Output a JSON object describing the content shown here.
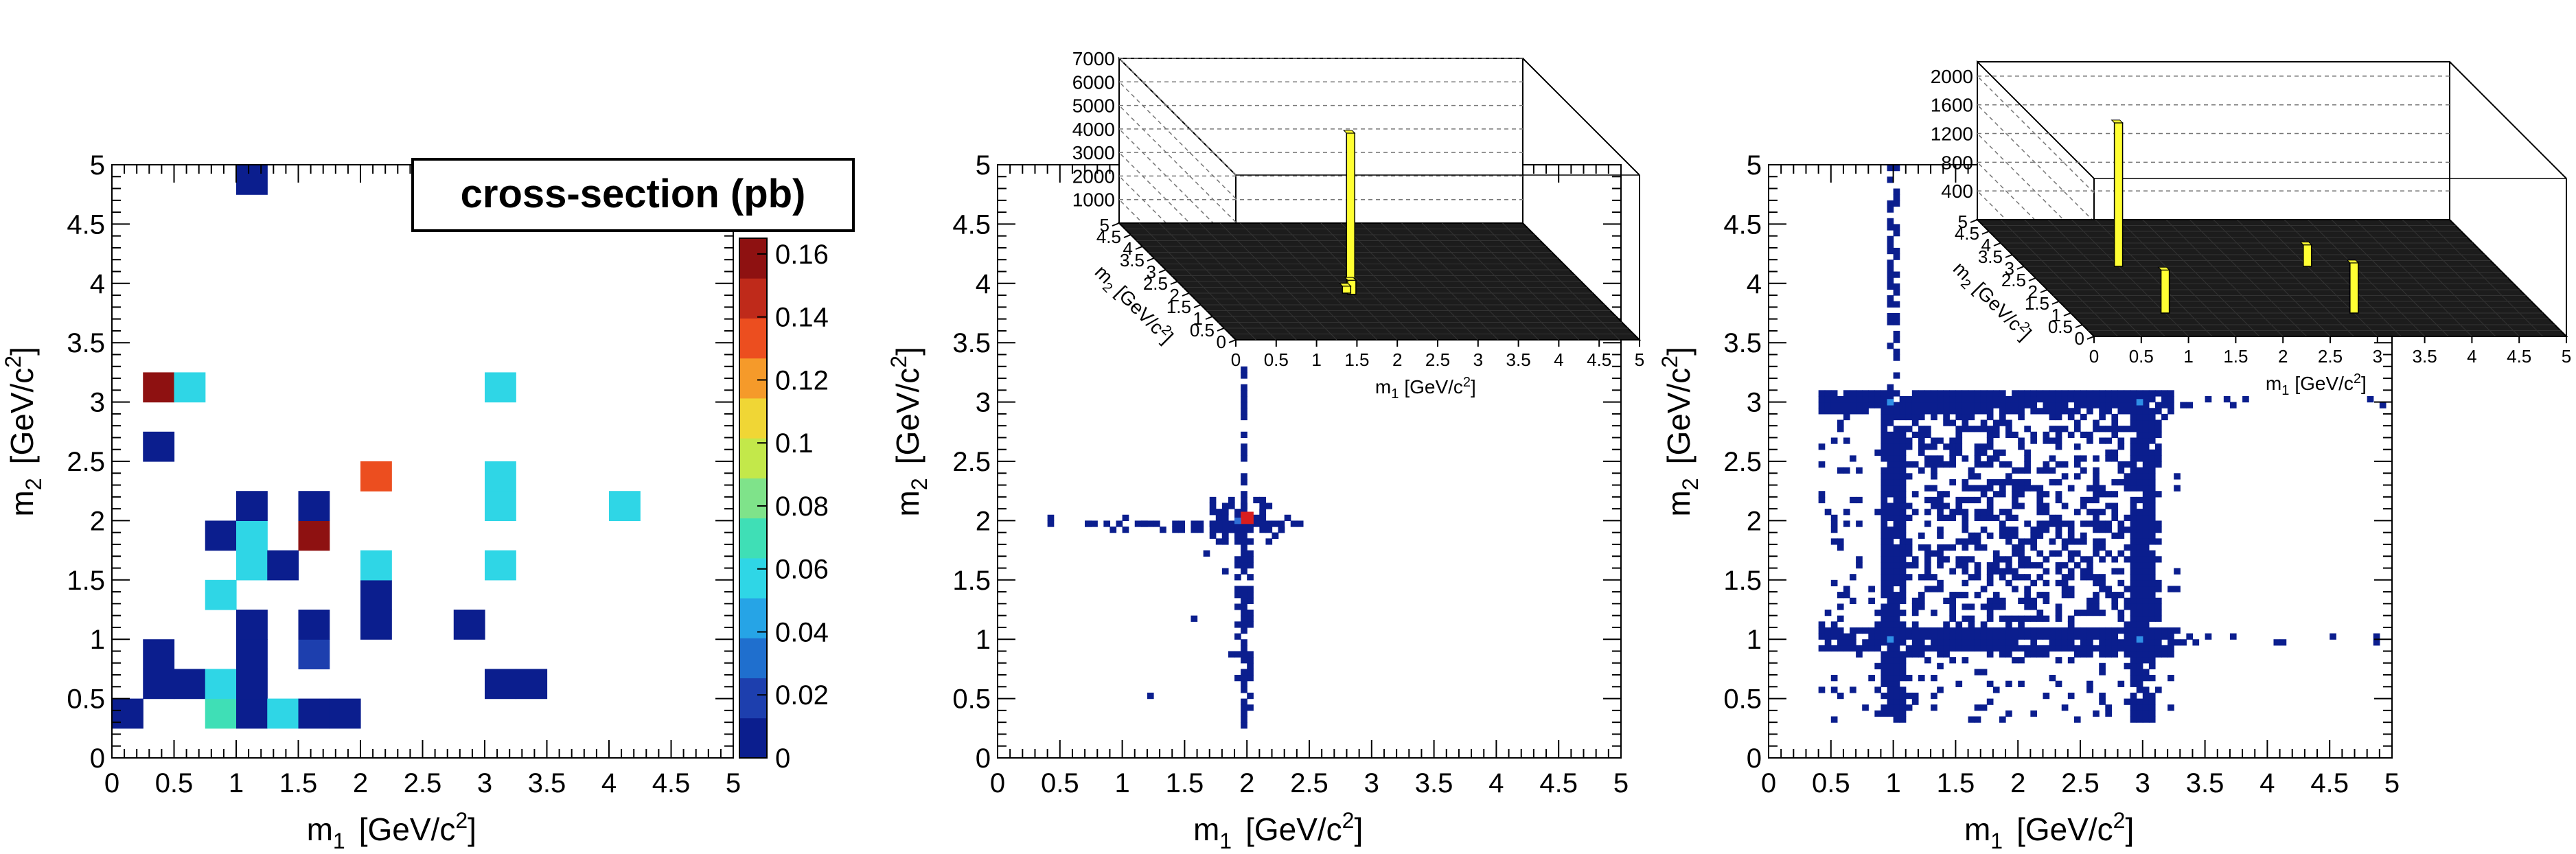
{
  "figure": {
    "background": "#ffffff"
  },
  "colors": {
    "axis": "#000000",
    "low": "#0b1e8e",
    "mid": "#3fdfb6",
    "high": "#8e1111",
    "surface": "#1c1c1c",
    "spike": "#ffff33"
  },
  "palette": [
    "#0b1e8e",
    "#1d3fae",
    "#1f6fce",
    "#26a4e6",
    "#2fd6e6",
    "#3fdfb6",
    "#7fe38a",
    "#c3e84a",
    "#f0d635",
    "#f59a2a",
    "#ec4e1f",
    "#bf2a1a",
    "#8e1111"
  ],
  "chart_data": [
    {
      "type": "heatmap",
      "xlabel_main": "m",
      "xlabel_sub": "1",
      "xlabel_unit": "[GeV/c",
      "xlabel_sup": "2",
      "xlabel_end": "]",
      "ylabel_main": "m",
      "ylabel_sub": "2",
      "ylabel_unit": "[GeV/c",
      "ylabel_sup": "2",
      "ylabel_end": "]",
      "xlim": [
        0,
        5
      ],
      "ylim": [
        0,
        5
      ],
      "xticks": [
        "0",
        "0.5",
        "1",
        "1.5",
        "2",
        "2.5",
        "3",
        "3.5",
        "4",
        "4.5",
        "5"
      ],
      "yticks": [
        "0",
        "0.5",
        "1",
        "1.5",
        "2",
        "2.5",
        "3",
        "3.5",
        "4",
        "4.5",
        "5"
      ],
      "bin_width": 0.25,
      "title_box": "cross-section (pb)",
      "colorbar": {
        "min": 0,
        "max": 0.165,
        "ticks": [
          "0",
          "0.02",
          "0.04",
          "0.06",
          "0.08",
          "0.1",
          "0.12",
          "0.14",
          "0.16"
        ]
      },
      "cells": [
        [
          0.0,
          0.25,
          0.004
        ],
        [
          0.25,
          0.5,
          0.004
        ],
        [
          0.25,
          0.75,
          0.004
        ],
        [
          0.5,
          0.5,
          0.004
        ],
        [
          0.75,
          0.25,
          0.075
        ],
        [
          0.75,
          0.5,
          0.06
        ],
        [
          0.75,
          1.25,
          0.06
        ],
        [
          0.75,
          1.75,
          0.004
        ],
        [
          1.0,
          0.25,
          0.004
        ],
        [
          1.0,
          0.5,
          0.004
        ],
        [
          1.0,
          0.75,
          0.004
        ],
        [
          1.0,
          1.0,
          0.004
        ],
        [
          1.0,
          1.5,
          0.06
        ],
        [
          1.0,
          1.75,
          0.06
        ],
        [
          1.0,
          2.0,
          0.004
        ],
        [
          1.0,
          4.75,
          0.004
        ],
        [
          1.25,
          0.25,
          0.06
        ],
        [
          1.25,
          1.5,
          0.004
        ],
        [
          1.5,
          0.25,
          0.004
        ],
        [
          1.5,
          0.75,
          0.025
        ],
        [
          1.5,
          1.0,
          0.004
        ],
        [
          1.5,
          1.75,
          0.165
        ],
        [
          1.5,
          2.0,
          0.004
        ],
        [
          1.75,
          0.25,
          0.004
        ],
        [
          2.0,
          1.0,
          0.004
        ],
        [
          2.0,
          1.25,
          0.004
        ],
        [
          2.0,
          1.5,
          0.06
        ],
        [
          2.0,
          2.25,
          0.135
        ],
        [
          2.75,
          1.0,
          0.004
        ],
        [
          3.0,
          0.5,
          0.004
        ],
        [
          3.0,
          1.5,
          0.06
        ],
        [
          3.0,
          2.0,
          0.06
        ],
        [
          3.0,
          2.25,
          0.06
        ],
        [
          3.0,
          3.0,
          0.06
        ],
        [
          3.25,
          0.5,
          0.004
        ],
        [
          4.0,
          2.0,
          0.06
        ],
        [
          0.25,
          2.5,
          0.004
        ],
        [
          0.25,
          3.0,
          0.165
        ],
        [
          0.5,
          3.0,
          0.06
        ]
      ]
    },
    {
      "type": "heatmap",
      "xlabel_main": "m",
      "xlabel_sub": "1",
      "xlabel_unit": "[GeV/c",
      "xlabel_sup": "2",
      "xlabel_end": "]",
      "ylabel_main": "m",
      "ylabel_sub": "2",
      "ylabel_unit": "[GeV/c",
      "ylabel_sup": "2",
      "ylabel_end": "]",
      "xlim": [
        0,
        5
      ],
      "ylim": [
        0,
        5
      ],
      "xticks": [
        "0",
        "0.5",
        "1",
        "1.5",
        "2",
        "2.5",
        "3",
        "3.5",
        "4",
        "4.5",
        "5"
      ],
      "yticks": [
        "0",
        "0.5",
        "1",
        "1.5",
        "2",
        "2.5",
        "3",
        "3.5",
        "4",
        "4.5",
        "5"
      ],
      "bin_width": 0.05,
      "distribution": "cross centered at m1 = 2, m2 = 2",
      "peak": [
        2.0,
        2.0
      ],
      "inset_3d": {
        "zticks": [
          "1000",
          "2000",
          "3000",
          "4000",
          "5000",
          "6000",
          "7000"
        ],
        "x_ticks": [
          "0",
          "0.5",
          "1",
          "1.5",
          "2",
          "2.5",
          "3",
          "3.5",
          "4",
          "4.5",
          "5"
        ],
        "y_ticks": [
          "0",
          "0.5",
          "1",
          "1.5",
          "2",
          "2.5",
          "3",
          "3.5",
          "4",
          "4.5",
          "5"
        ],
        "xlabel": "m",
        "xlabel_sub": "1",
        "xlabel_unit": "[GeV/c",
        "xlabel_sup": "2",
        "xlabel_end": "]",
        "ylabel": "m",
        "ylabel_sub": "2",
        "ylabel_unit": "[GeV/c",
        "ylabel_sup": "2",
        "ylabel_end": "]",
        "spikes": [
          [
            2.0,
            2.0,
            6800
          ],
          [
            2.0,
            1.95,
            600
          ],
          [
            1.95,
            2.0,
            300
          ]
        ]
      }
    },
    {
      "type": "heatmap",
      "xlabel_main": "m",
      "xlabel_sub": "1",
      "xlabel_unit": "[GeV/c",
      "xlabel_sup": "2",
      "xlabel_end": "]",
      "ylabel_main": "m",
      "ylabel_sub": "2",
      "ylabel_unit": "[GeV/c",
      "ylabel_sup": "2",
      "ylabel_end": "]",
      "xlim": [
        0,
        5
      ],
      "ylim": [
        0,
        5
      ],
      "xticks": [
        "0",
        "0.5",
        "1",
        "1.5",
        "2",
        "2.5",
        "3",
        "3.5",
        "4",
        "4.5",
        "5"
      ],
      "yticks": [
        "0",
        "0.5",
        "1",
        "1.5",
        "2",
        "2.5",
        "3",
        "3.5",
        "4",
        "4.5",
        "5"
      ],
      "bin_width": 0.05,
      "distribution": "box with bands at m = 1 and m = 3, diffuse fill inside",
      "peaks": [
        [
          1.0,
          1.0
        ],
        [
          3.0,
          1.0
        ],
        [
          1.0,
          3.0
        ],
        [
          3.0,
          3.0
        ]
      ],
      "inset_3d": {
        "zticks": [
          "400",
          "800",
          "1200",
          "1600",
          "2000"
        ],
        "x_ticks": [
          "0",
          "0.5",
          "1",
          "1.5",
          "2",
          "2.5",
          "3",
          "3.5",
          "4",
          "4.5",
          "5"
        ],
        "y_ticks": [
          "0",
          "0.5",
          "1",
          "1.5",
          "2",
          "2.5",
          "3",
          "3.5",
          "4",
          "4.5",
          "5"
        ],
        "xlabel": "m",
        "xlabel_sub": "1",
        "xlabel_unit": "[GeV/c",
        "xlabel_sup": "2",
        "xlabel_end": "]",
        "ylabel": "m",
        "ylabel_sub": "2",
        "ylabel_unit": "[GeV/c",
        "ylabel_sup": "2",
        "ylabel_end": "]",
        "spikes": [
          [
            1.0,
            3.0,
            2000
          ],
          [
            1.0,
            1.0,
            600
          ],
          [
            3.0,
            1.0,
            700
          ],
          [
            3.0,
            3.0,
            300
          ]
        ]
      }
    }
  ]
}
